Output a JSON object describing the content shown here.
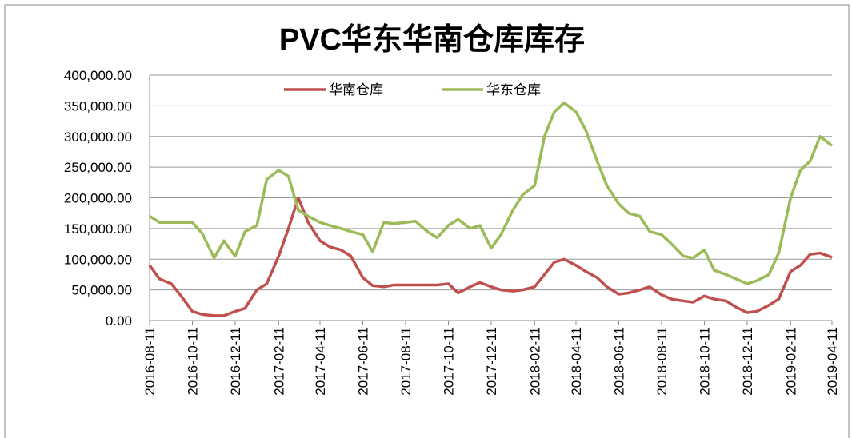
{
  "chart_data": {
    "type": "line",
    "title": "PVC华东华南仓库库存",
    "x": [
      "2016-08-11",
      "2016-08-25",
      "2016-09-11",
      "2016-09-25",
      "2016-10-11",
      "2016-10-25",
      "2016-11-11",
      "2016-11-25",
      "2016-12-11",
      "2016-12-25",
      "2017-01-11",
      "2017-01-25",
      "2017-02-11",
      "2017-02-25",
      "2017-03-11",
      "2017-03-25",
      "2017-04-11",
      "2017-04-25",
      "2017-05-11",
      "2017-05-25",
      "2017-06-11",
      "2017-06-25",
      "2017-07-11",
      "2017-07-25",
      "2017-08-11",
      "2017-08-25",
      "2017-09-11",
      "2017-09-25",
      "2017-10-11",
      "2017-10-25",
      "2017-11-11",
      "2017-11-25",
      "2017-12-11",
      "2017-12-25",
      "2018-01-11",
      "2018-01-25",
      "2018-02-11",
      "2018-02-25",
      "2018-03-11",
      "2018-03-25",
      "2018-04-11",
      "2018-04-25",
      "2018-05-11",
      "2018-05-25",
      "2018-06-11",
      "2018-06-25",
      "2018-07-11",
      "2018-07-25",
      "2018-08-11",
      "2018-08-25",
      "2018-09-11",
      "2018-09-25",
      "2018-10-11",
      "2018-10-25",
      "2018-11-11",
      "2018-11-25",
      "2018-12-11",
      "2018-12-25",
      "2019-01-11",
      "2019-01-25",
      "2019-02-11",
      "2019-02-25",
      "2019-03-11",
      "2019-03-25",
      "2019-04-11"
    ],
    "series": [
      {
        "name": "华南仓库",
        "color": "#c0504d",
        "values": [
          90000,
          68000,
          60000,
          40000,
          15000,
          10000,
          8000,
          8000,
          15000,
          20000,
          50000,
          60000,
          105000,
          150000,
          200000,
          160000,
          130000,
          120000,
          115000,
          105000,
          70000,
          57000,
          55000,
          58000,
          58000,
          58000,
          58000,
          58000,
          60000,
          45000,
          55000,
          62000,
          55000,
          50000,
          48000,
          50000,
          55000,
          75000,
          95000,
          100000,
          90000,
          80000,
          70000,
          55000,
          43000,
          45000,
          50000,
          55000,
          42000,
          35000,
          32000,
          30000,
          40000,
          35000,
          32000,
          22000,
          13000,
          15000,
          25000,
          35000,
          80000,
          90000,
          108000,
          110000,
          103000
        ]
      },
      {
        "name": "华东仓库",
        "color": "#9bbb59",
        "values": [
          170000,
          160000,
          160000,
          160000,
          160000,
          142000,
          102000,
          130000,
          105000,
          145000,
          155000,
          230000,
          245000,
          235000,
          180000,
          170000,
          160000,
          155000,
          150000,
          145000,
          140000,
          112000,
          160000,
          158000,
          160000,
          162000,
          145000,
          135000,
          155000,
          165000,
          150000,
          155000,
          118000,
          140000,
          180000,
          205000,
          220000,
          300000,
          340000,
          355000,
          340000,
          310000,
          260000,
          220000,
          190000,
          175000,
          170000,
          145000,
          140000,
          125000,
          105000,
          102000,
          115000,
          82000,
          75000,
          68000,
          60000,
          65000,
          75000,
          110000,
          200000,
          245000,
          260000,
          300000,
          285000
        ]
      }
    ],
    "xlim": [
      "2016-08-11",
      "2019-04-11"
    ],
    "xticks": [
      "2016-08-11",
      "2016-10-11",
      "2016-12-11",
      "2017-02-11",
      "2017-04-11",
      "2017-06-11",
      "2017-08-11",
      "2017-10-11",
      "2017-12-11",
      "2018-02-11",
      "2018-04-11",
      "2018-06-11",
      "2018-08-11",
      "2018-10-11",
      "2018-12-11",
      "2019-02-11",
      "2019-04-11"
    ],
    "ylim": [
      0,
      400000
    ],
    "yticks": [
      {
        "value": 0,
        "label": "0.00"
      },
      {
        "value": 50000,
        "label": "50,000.00"
      },
      {
        "value": 100000,
        "label": "100,000.00"
      },
      {
        "value": 150000,
        "label": "150,000.00"
      },
      {
        "value": 200000,
        "label": "200,000.00"
      },
      {
        "value": 250000,
        "label": "250,000.00"
      },
      {
        "value": 300000,
        "label": "300,000.00"
      },
      {
        "value": 350000,
        "label": "350,000.00"
      },
      {
        "value": 400000,
        "label": "400,000.00"
      }
    ],
    "grid": true,
    "legend": "top"
  }
}
